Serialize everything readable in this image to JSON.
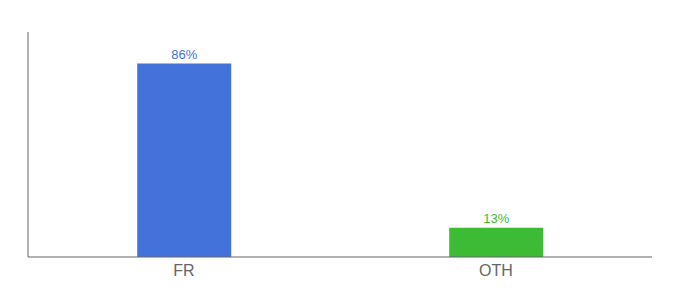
{
  "chart_data": {
    "type": "bar",
    "categories": [
      "FR",
      "OTH"
    ],
    "values": [
      86,
      13
    ],
    "value_labels": [
      "86%",
      "13%"
    ],
    "colors": [
      "#4472db",
      "#3dbb35"
    ],
    "ylim": [
      0,
      100
    ],
    "data_labels": true,
    "tick_labels": "x"
  }
}
